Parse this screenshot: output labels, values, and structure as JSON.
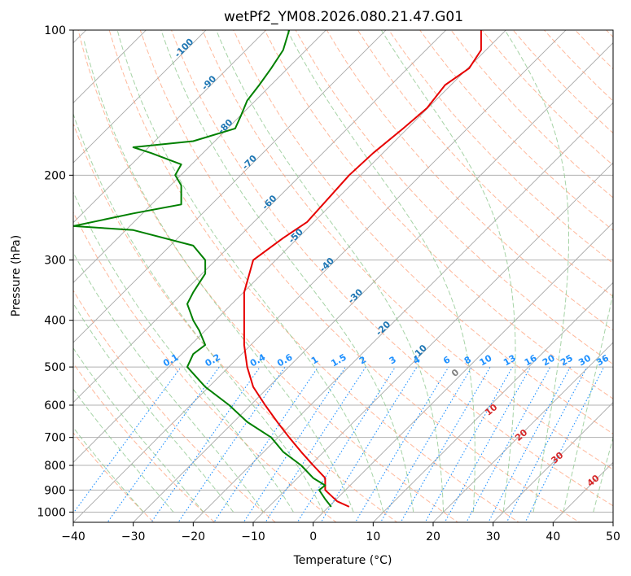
{
  "chart_data": {
    "type": "line",
    "chart_kind": "skew-T log-P diagram",
    "title": "wetPf2_YM08.2026.080.21.47.G01",
    "xlabel": "Temperature (°C)",
    "ylabel": "Pressure (hPa)",
    "xlim": [
      -40,
      50
    ],
    "ylim_hpa": [
      1050,
      100
    ],
    "y_scale": "log",
    "x_ticks": [
      -40,
      -30,
      -20,
      -10,
      0,
      10,
      20,
      30,
      40,
      50
    ],
    "y_ticks": [
      100,
      200,
      300,
      400,
      500,
      600,
      700,
      800,
      900,
      1000
    ],
    "grid": true,
    "colors": {
      "temperature": "#e60000",
      "dewpoint": "#008000",
      "isotherm_label": "#1f77b4",
      "dry_adiabat": "#ffa07a",
      "moist_adiabat": "#90c890",
      "mixing_ratio": "#1e90ff",
      "mixing_label": "#1e90ff",
      "moist_label": "#d62728",
      "moist_zero_label": "#808080"
    },
    "series": [
      {
        "key": "temperature",
        "points": [
          [
            6,
            975
          ],
          [
            4,
            950
          ],
          [
            2,
            900
          ],
          [
            2,
            850
          ],
          [
            0,
            800
          ],
          [
            -2,
            750
          ],
          [
            -4,
            700
          ],
          [
            -6,
            650
          ],
          [
            -8,
            600
          ],
          [
            -10,
            550
          ],
          [
            -11,
            500
          ],
          [
            -11.5,
            450
          ],
          [
            -11.5,
            400
          ],
          [
            -11.5,
            350
          ],
          [
            -10,
            300
          ],
          [
            -5,
            270
          ],
          [
            -1,
            250
          ],
          [
            3,
            220
          ],
          [
            6,
            200
          ],
          [
            10,
            180
          ],
          [
            15,
            160
          ],
          [
            19,
            145
          ],
          [
            22,
            130
          ],
          [
            26,
            120
          ],
          [
            28,
            110
          ],
          [
            28,
            100
          ]
        ]
      },
      {
        "key": "dewpoint",
        "points": [
          [
            3,
            975
          ],
          [
            2,
            940
          ],
          [
            1,
            900
          ],
          [
            2,
            880
          ],
          [
            0,
            850
          ],
          [
            -2,
            800
          ],
          [
            -5,
            750
          ],
          [
            -7,
            700
          ],
          [
            -11,
            650
          ],
          [
            -14,
            600
          ],
          [
            -18,
            550
          ],
          [
            -21,
            500
          ],
          [
            -20,
            470
          ],
          [
            -18,
            450
          ],
          [
            -19,
            420
          ],
          [
            -20,
            400
          ],
          [
            -21,
            370
          ],
          [
            -20,
            350
          ],
          [
            -18,
            320
          ],
          [
            -18,
            300
          ],
          [
            -20,
            280
          ],
          [
            -30,
            260
          ],
          [
            -40,
            255
          ],
          [
            -30,
            240
          ],
          [
            -22,
            230
          ],
          [
            -22,
            210
          ],
          [
            -23,
            200
          ],
          [
            -22,
            190
          ],
          [
            -27,
            180
          ],
          [
            -30,
            175
          ],
          [
            -20,
            170
          ],
          [
            -13,
            160
          ],
          [
            -12,
            150
          ],
          [
            -11,
            140
          ],
          [
            -9,
            130
          ],
          [
            -7,
            120
          ],
          [
            -5,
            110
          ],
          [
            -4,
            100
          ]
        ]
      }
    ],
    "isotherm_labels": [
      {
        "text": "-100",
        "t": -100,
        "p": 110
      },
      {
        "text": "-90",
        "t": -90,
        "p": 130
      },
      {
        "text": "-80",
        "t": -80,
        "p": 160
      },
      {
        "text": "-70",
        "t": -70,
        "p": 190
      },
      {
        "text": "-60",
        "t": -60,
        "p": 230
      },
      {
        "text": "-50",
        "t": -50,
        "p": 270
      },
      {
        "text": "-40",
        "t": -40,
        "p": 310
      },
      {
        "text": "-30",
        "t": -30,
        "p": 360
      },
      {
        "text": "-20",
        "t": -20,
        "p": 420
      },
      {
        "text": "-10",
        "t": -10,
        "p": 470
      }
    ],
    "mixing_ratio_labels": [
      "0.1",
      "0.2",
      "0.4",
      "0.6",
      "1",
      "1.5",
      "2",
      "3",
      "4",
      "6",
      "8",
      "10",
      "13",
      "16",
      "20",
      "25",
      "30",
      "36"
    ],
    "mixing_ratio_label_temps": [
      -23.5,
      -16.5,
      -9,
      -4.5,
      0.5,
      4.5,
      8.5,
      13.5,
      17.5,
      22.5,
      26,
      29,
      33,
      36.5,
      39.5,
      42.5,
      45.5,
      48.5
    ],
    "moist_adiabat_labels": [
      {
        "text": "0",
        "t": 24,
        "p": 520
      },
      {
        "text": "10",
        "t": 30,
        "p": 620
      },
      {
        "text": "20",
        "t": 35,
        "p": 700
      },
      {
        "text": "30",
        "t": 41,
        "p": 780
      },
      {
        "text": "40",
        "t": 47,
        "p": 870
      }
    ]
  }
}
